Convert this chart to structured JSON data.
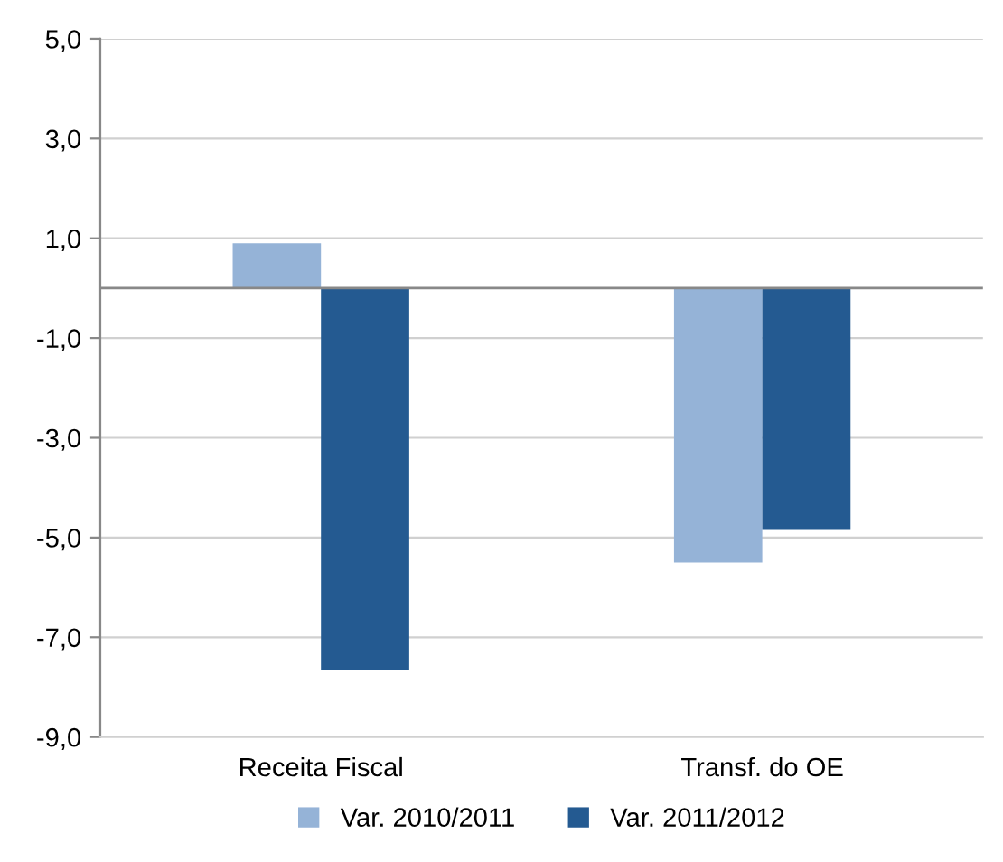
{
  "chart_data": {
    "type": "bar",
    "categories": [
      "Receita Fiscal",
      "Transf. do OE"
    ],
    "series": [
      {
        "name": "Var. 2010/2011",
        "color": "#95b3d7",
        "values": [
          0.9,
          -5.5
        ]
      },
      {
        "name": "Var. 2011/2012",
        "color": "#245a91",
        "values": [
          -7.65,
          -4.85
        ]
      }
    ],
    "ylim": [
      -9,
      5
    ],
    "yticks": [
      {
        "value": 5,
        "label": "5,0"
      },
      {
        "value": 3,
        "label": "3,0"
      },
      {
        "value": 1,
        "label": "1,0"
      },
      {
        "value": -1,
        "label": "-1,0"
      },
      {
        "value": -3,
        "label": "-3,0"
      },
      {
        "value": -5,
        "label": "-5,0"
      },
      {
        "value": -7,
        "label": "-7,0"
      },
      {
        "value": -9,
        "label": "-9,0"
      }
    ],
    "grid": "y",
    "legend": "bottom"
  }
}
